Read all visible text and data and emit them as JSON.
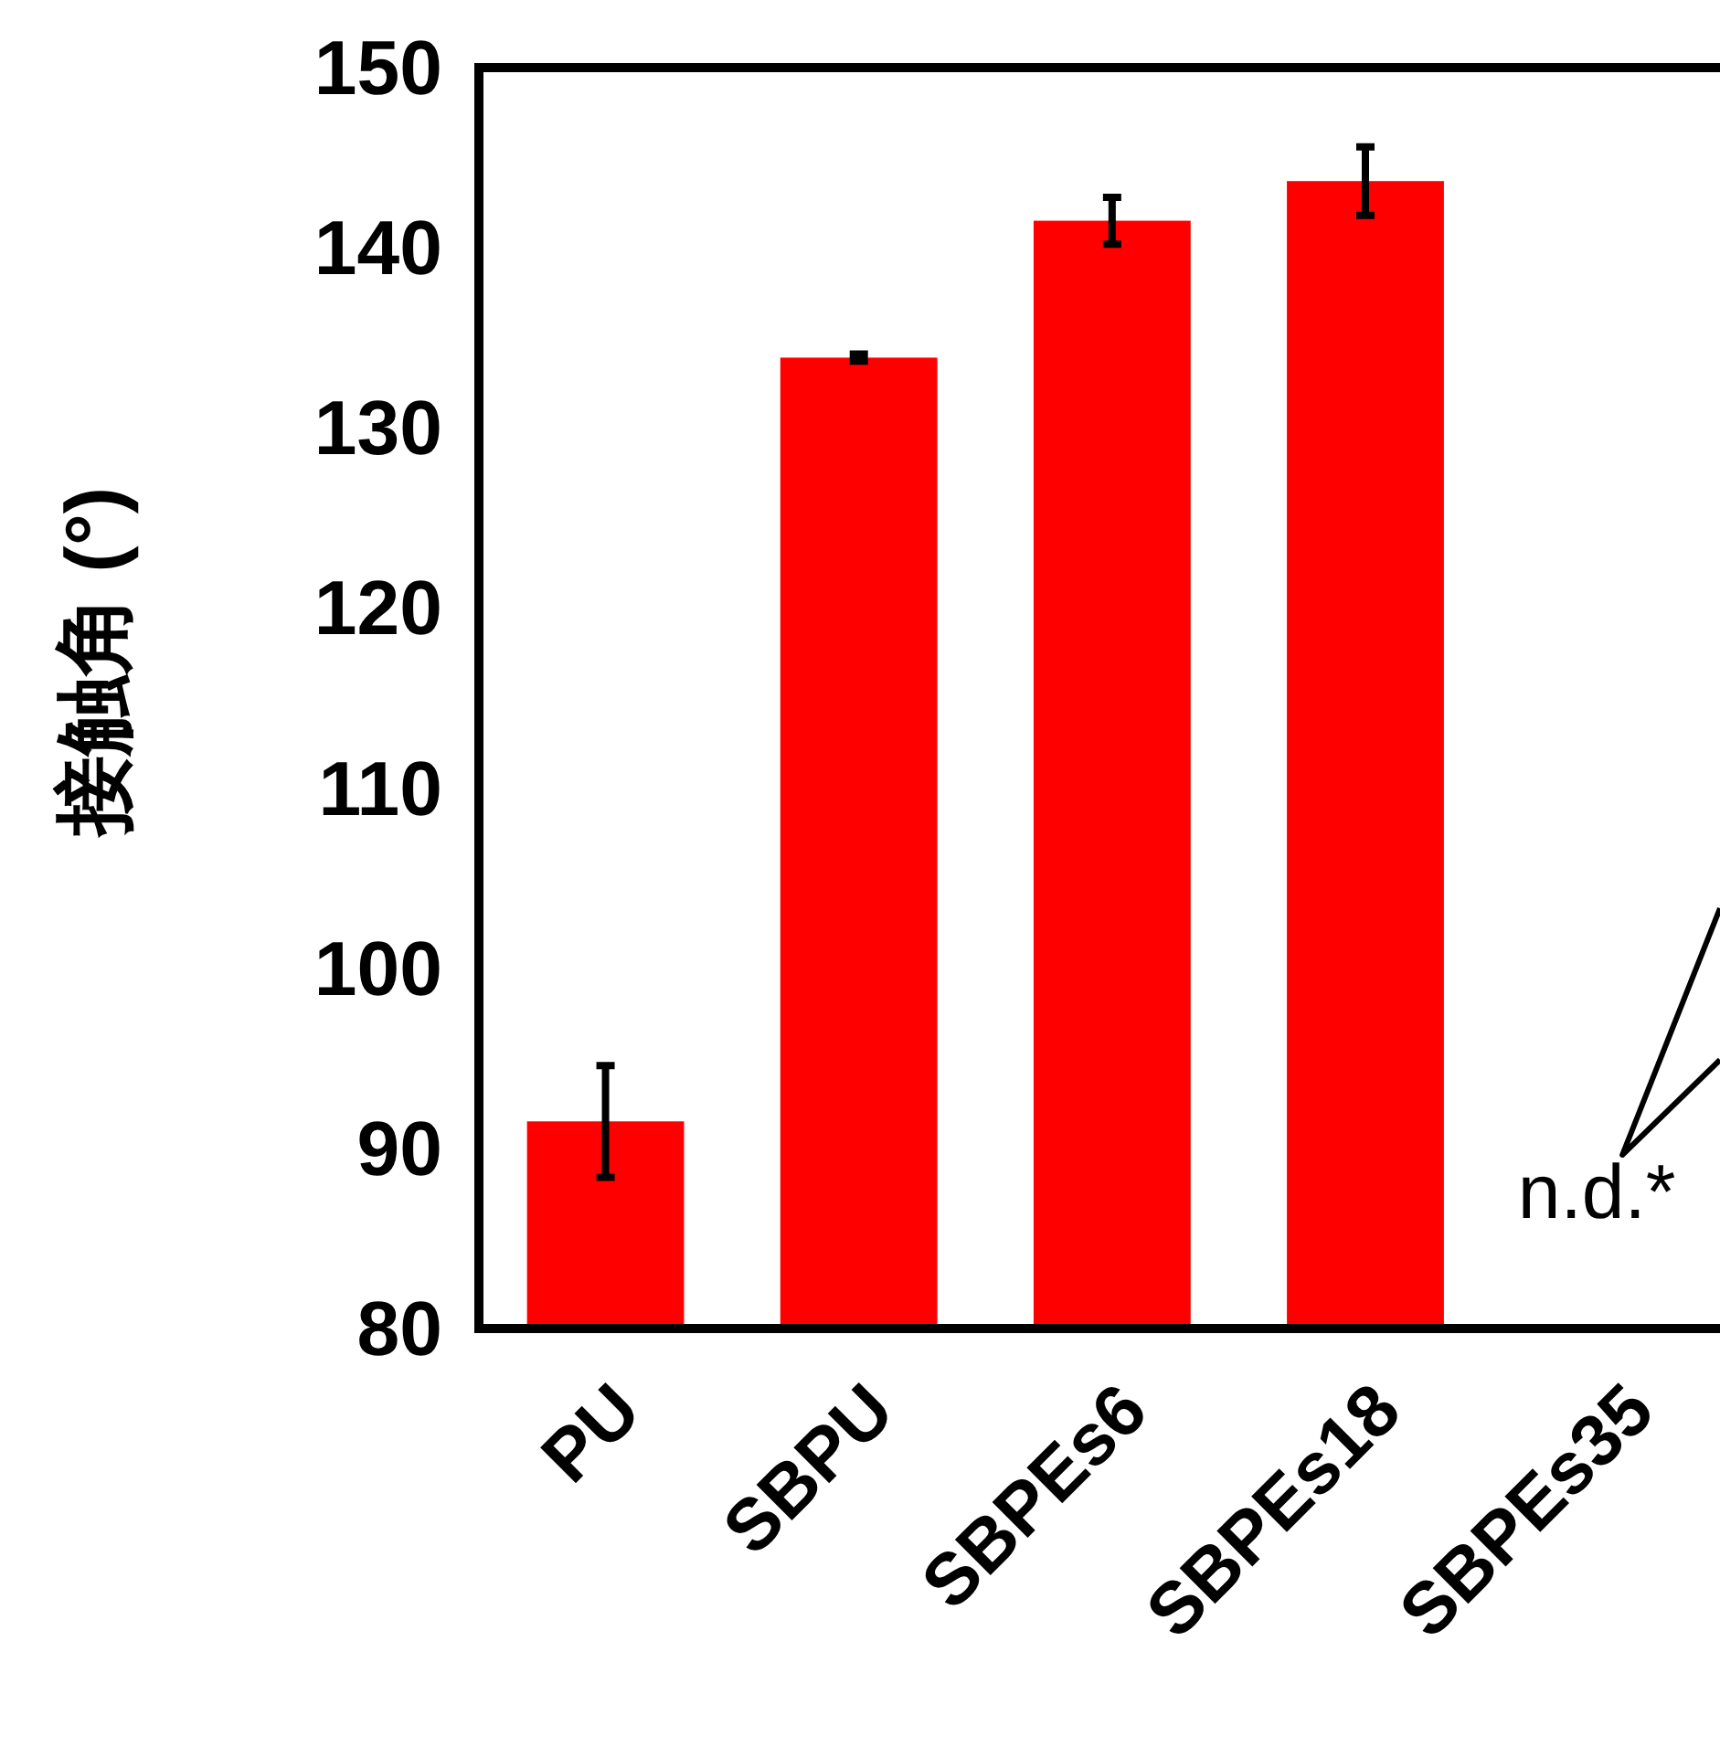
{
  "chart_data": {
    "type": "bar",
    "ylabel": "接触角 (°)",
    "categories": [
      "PU",
      "SBPU",
      "SBPEs6",
      "SBPEs18",
      "SBPEs35"
    ],
    "values": [
      91.5,
      133.9,
      141.5,
      143.7,
      null
    ],
    "errors": [
      3.1,
      0.2,
      1.3,
      1.9,
      null
    ],
    "color": "#ff0000",
    "ylim": [
      80,
      150
    ],
    "yticks": [
      80,
      90,
      100,
      110,
      120,
      130,
      140,
      150
    ],
    "annotations": [
      "n.d.*"
    ]
  }
}
